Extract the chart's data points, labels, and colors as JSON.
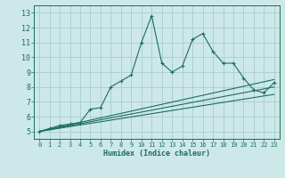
{
  "background_color": "#cde8e8",
  "grid_color": "#a8cccc",
  "line_color": "#1a6e5e",
  "x_label": "Humidex (Indice chaleur)",
  "xlim": [
    -0.5,
    23.5
  ],
  "ylim": [
    4.5,
    13.5
  ],
  "yticks": [
    5,
    6,
    7,
    8,
    9,
    10,
    11,
    12,
    13
  ],
  "xticks": [
    0,
    1,
    2,
    3,
    4,
    5,
    6,
    7,
    8,
    9,
    10,
    11,
    12,
    13,
    14,
    15,
    16,
    17,
    18,
    19,
    20,
    21,
    22,
    23
  ],
  "line1_x": [
    0,
    1,
    2,
    3,
    4,
    5,
    6,
    7,
    8,
    9,
    10,
    11,
    12,
    13,
    14,
    15,
    16,
    17,
    18,
    19,
    20,
    21,
    22,
    23
  ],
  "line1_y": [
    5.0,
    5.2,
    5.4,
    5.5,
    5.6,
    6.5,
    6.6,
    8.0,
    8.4,
    8.8,
    11.0,
    12.8,
    9.6,
    9.0,
    9.4,
    11.2,
    11.6,
    10.4,
    9.6,
    9.6,
    8.6,
    7.8,
    7.6,
    8.3
  ],
  "line2_x": [
    0,
    23
  ],
  "line2_y": [
    5.0,
    8.5
  ],
  "line3_x": [
    0,
    23
  ],
  "line3_y": [
    5.0,
    8.0
  ],
  "line4_x": [
    0,
    23
  ],
  "line4_y": [
    5.0,
    7.5
  ]
}
